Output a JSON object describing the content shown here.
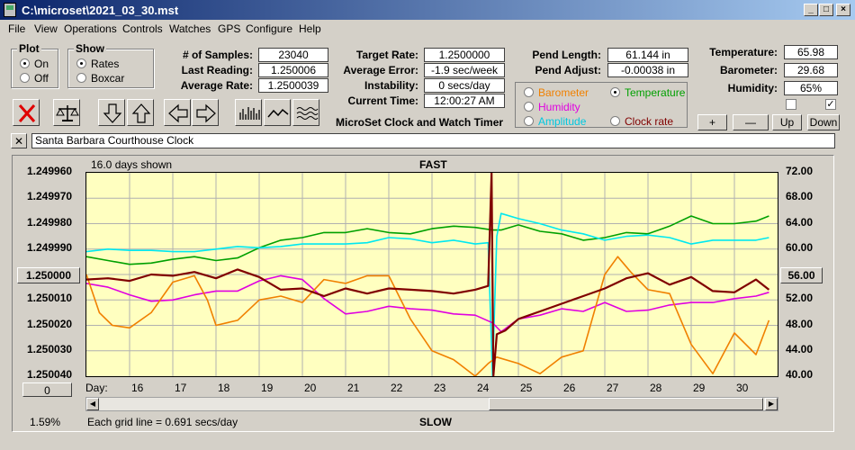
{
  "window": {
    "title": "C:\\microset\\2021_03_30.mst",
    "min_glyph": "_",
    "max_glyph": "□",
    "close_glyph": "×"
  },
  "menu": [
    "File",
    "View",
    "Operations",
    "Controls",
    "Watches",
    "GPS",
    "Configure",
    "Help"
  ],
  "plot_group": {
    "title": "Plot",
    "on": "On",
    "off": "Off",
    "selected": "On"
  },
  "show_group": {
    "title": "Show",
    "rates": "Rates",
    "boxcar": "Boxcar",
    "selected": "Rates"
  },
  "stats": {
    "samples_label": "# of Samples:",
    "samples": "23040",
    "last_reading_label": "Last Reading:",
    "last_reading": "1.250006",
    "average_rate_label": "Average Rate:",
    "average_rate": "1.2500039",
    "target_rate_label": "Target Rate:",
    "target_rate": "1.2500000",
    "average_error_label": "Average Error:",
    "average_error": "-1.9 sec/week",
    "instability_label": "Instability:",
    "instability": "0 secs/day",
    "current_time_label": "Current Time:",
    "current_time": "12:00:27 AM",
    "pend_length_label": "Pend Length:",
    "pend_length": "61.144 in",
    "pend_adjust_label": "Pend Adjust:",
    "pend_adjust": "-0.00038 in"
  },
  "env": {
    "temperature_label": "Temperature:",
    "temperature": "65.98",
    "barometer_label": "Barometer:",
    "barometer": "29.68",
    "humidity_label": "Humidity:",
    "humidity": "65%"
  },
  "app_name": "MicroSet Clock and Watch Timer",
  "series_selector": {
    "barometer": "Barometer",
    "temperature": "Temperature",
    "humidity": "Humidity",
    "amplitude": "Amplitude",
    "clock_rate": "Clock rate",
    "selected": "Temperature"
  },
  "adjust_buttons": {
    "plus": "+",
    "minus": "—",
    "up": "Up",
    "down": "Down"
  },
  "clock_name": {
    "close_glyph": "✕",
    "value": "Santa Barbara Courthouse Clock"
  },
  "chart_info": {
    "days_shown": "16.0 days shown",
    "fast": "FAST",
    "slow": "SLOW",
    "grid_note": "Each grid line = 0.691 secs/day",
    "day_prefix": "Day:",
    "left_button": "1.250000",
    "right_button": "56.00",
    "zero_button": "0",
    "percent": "1.59%"
  },
  "colors": {
    "temperature": "#00a000",
    "amplitude": "#00e8f0",
    "humidity": "#e000e0",
    "barometer": "#f08000",
    "clock_rate": "#800000",
    "plot_bg": "#ffffc0"
  },
  "chart_data": {
    "type": "line",
    "x_label": "Day",
    "x_ticks": [
      16,
      17,
      18,
      19,
      20,
      21,
      22,
      23,
      24,
      25,
      26,
      27,
      28,
      29,
      30
    ],
    "xlim": [
      15.0,
      31.0
    ],
    "left_axis": {
      "ticks": [
        "1.249960",
        "1.249970",
        "1.249980",
        "1.249990",
        "1.250000",
        "1.250010",
        "1.250020",
        "1.250030",
        "1.250040"
      ],
      "range": [
        1.24996,
        1.25004
      ],
      "inverted": true
    },
    "right_axis": {
      "ticks": [
        "72.00",
        "68.00",
        "64.00",
        "60.00",
        "56.00",
        "52.00",
        "48.00",
        "44.00",
        "40.00"
      ],
      "range": [
        40,
        72
      ]
    },
    "spike_day": 24.4,
    "series": [
      {
        "name": "Temperature",
        "axis": "right",
        "x": [
          15,
          15.5,
          16,
          16.5,
          17,
          17.5,
          18,
          18.5,
          19,
          19.5,
          20,
          20.5,
          21,
          21.5,
          22,
          22.5,
          23,
          23.5,
          24,
          24.4,
          24.6,
          25,
          25.5,
          26,
          26.5,
          27,
          27.5,
          28,
          28.5,
          29,
          29.5,
          30,
          30.5,
          30.8
        ],
        "values": [
          58.8,
          58.2,
          57.6,
          57.8,
          58.4,
          58.8,
          58.2,
          58.6,
          60.2,
          61.4,
          61.8,
          62.6,
          62.6,
          63.2,
          62.6,
          62.4,
          63.2,
          63.6,
          63.4,
          63.0,
          63.0,
          63.8,
          62.8,
          62.4,
          61.4,
          61.8,
          62.6,
          62.4,
          63.6,
          65.2,
          64.0,
          64.0,
          64.4,
          65.2
        ]
      },
      {
        "name": "Amplitude",
        "axis": "right",
        "x": [
          15,
          15.5,
          16,
          16.5,
          17,
          17.5,
          18,
          18.5,
          19,
          19.5,
          20,
          20.5,
          21,
          21.5,
          22,
          22.5,
          23,
          23.5,
          24,
          24.3,
          24.4,
          24.5,
          24.6,
          25,
          25.5,
          26,
          26.5,
          27,
          27.5,
          28,
          28.5,
          29,
          29.5,
          30,
          30.5,
          30.8
        ],
        "values": [
          59.6,
          60.0,
          59.8,
          59.8,
          59.6,
          59.6,
          60.0,
          60.4,
          60.2,
          60.4,
          60.8,
          60.8,
          60.8,
          61.0,
          61.8,
          61.6,
          61.0,
          61.4,
          60.8,
          61.0,
          40.0,
          62.0,
          65.6,
          64.8,
          64.0,
          63.0,
          62.4,
          61.4,
          62.0,
          62.2,
          61.8,
          60.8,
          61.4,
          61.4,
          61.4,
          61.8
        ]
      },
      {
        "name": "Humidity",
        "axis": "right",
        "x": [
          15,
          15.5,
          16,
          16.5,
          17,
          17.5,
          18,
          18.5,
          19,
          19.5,
          20,
          20.5,
          21,
          21.5,
          22,
          22.5,
          23,
          23.5,
          24,
          24.4,
          24.6,
          25,
          25.5,
          26,
          26.5,
          27,
          27.5,
          28,
          28.5,
          29,
          29.5,
          30,
          30.5,
          30.8
        ],
        "values": [
          54.6,
          54.0,
          52.8,
          51.8,
          52.0,
          52.8,
          53.4,
          53.4,
          55.0,
          55.8,
          55.2,
          52.2,
          49.8,
          50.2,
          51.0,
          50.6,
          50.4,
          49.8,
          49.6,
          48.4,
          47.0,
          49.0,
          49.6,
          50.6,
          50.2,
          51.6,
          50.2,
          50.4,
          51.2,
          51.6,
          51.6,
          52.2,
          52.6,
          53.2
        ]
      },
      {
        "name": "Barometer",
        "axis": "right",
        "x": [
          15,
          15.3,
          15.6,
          16,
          16.5,
          17,
          17.5,
          17.8,
          18,
          18.5,
          19,
          19.5,
          20,
          20.5,
          21,
          21.5,
          22,
          22.5,
          23,
          23.5,
          24,
          24.3,
          24.5,
          25,
          25.5,
          26,
          26.5,
          27,
          27.3,
          27.6,
          28,
          28.5,
          29,
          29.5,
          30,
          30.5,
          30.8
        ],
        "values": [
          56.0,
          50.0,
          48.0,
          47.6,
          50.0,
          54.8,
          55.8,
          52.0,
          48.0,
          48.8,
          52.0,
          52.6,
          51.6,
          55.2,
          54.6,
          55.8,
          55.8,
          49.0,
          44.0,
          42.6,
          40.0,
          42.0,
          43.0,
          42.0,
          40.4,
          43.0,
          44.0,
          56.0,
          58.8,
          56.4,
          53.6,
          53.0,
          45.0,
          40.4,
          46.8,
          43.4,
          48.8
        ]
      },
      {
        "name": "Clock rate",
        "axis": "right",
        "x": [
          15,
          15.5,
          16,
          16.5,
          17,
          17.5,
          18,
          18.5,
          19,
          19.5,
          20,
          20.5,
          21,
          21.5,
          22,
          22.5,
          23,
          23.5,
          24,
          24.3,
          24.38,
          24.42,
          24.5,
          24.7,
          25,
          25.5,
          26,
          26.5,
          27,
          27.5,
          28,
          28.5,
          29,
          29.5,
          30,
          30.5,
          30.8
        ],
        "values": [
          55.2,
          55.4,
          55.0,
          56.0,
          55.8,
          56.4,
          55.4,
          56.8,
          55.6,
          53.6,
          53.8,
          52.6,
          53.8,
          53.0,
          53.8,
          53.6,
          53.4,
          53.0,
          53.6,
          54.2,
          72.0,
          40.0,
          46.6,
          47.2,
          49.0,
          50.2,
          51.4,
          52.6,
          53.8,
          55.4,
          56.2,
          54.4,
          55.6,
          53.4,
          53.2,
          55.2,
          53.6
        ]
      }
    ]
  }
}
